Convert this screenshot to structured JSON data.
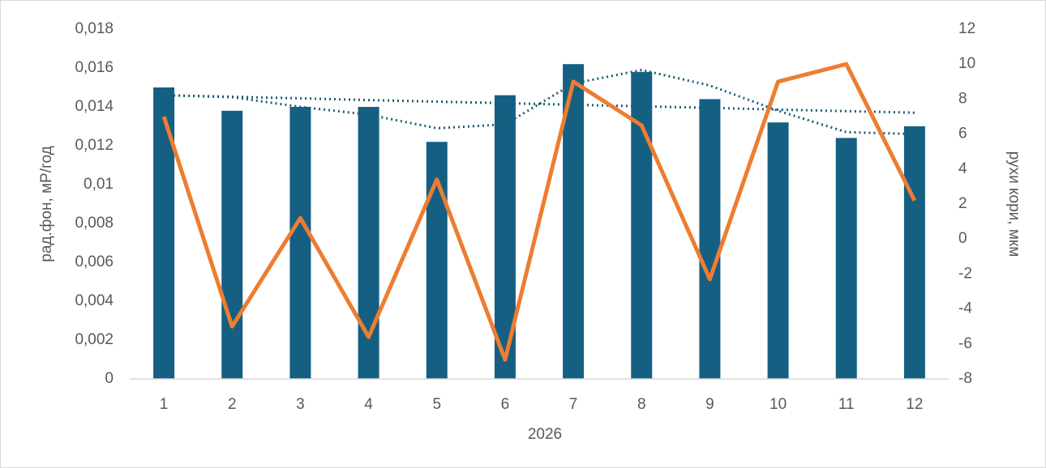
{
  "chart_data": {
    "type": "bar",
    "xlabel": "2026",
    "ylabel": "рад.фон, мР/год",
    "y2label": "рухи кори, мкм",
    "categories": [
      "1",
      "2",
      "3",
      "4",
      "5",
      "6",
      "7",
      "8",
      "9",
      "10",
      "11",
      "12"
    ],
    "series": [
      {
        "type": "bar",
        "color": "#155f83",
        "values": [
          0.015,
          0.0138,
          0.014,
          0.014,
          0.0122,
          0.0146,
          0.0162,
          0.0158,
          0.0144,
          0.0132,
          0.0124,
          0.013
        ]
      },
      {
        "type": "line",
        "style": "dotted",
        "color": "#1b5e73",
        "values": [
          0.0146,
          0.01452,
          0.01444,
          0.01435,
          0.01427,
          0.01419,
          0.01411,
          0.01403,
          0.01395,
          0.01386,
          0.01378,
          0.0137
        ]
      },
      {
        "type": "line",
        "style": "dotted",
        "color": "#1b5e73",
        "values": [
          0.0146,
          0.0145,
          0.014,
          0.0136,
          0.0129,
          0.0131,
          0.0152,
          0.0159,
          0.0151,
          0.0138,
          0.0127,
          0.0126
        ]
      },
      {
        "type": "line",
        "style": "solid",
        "color": "#ed7d31",
        "axis": "y2",
        "values": [
          7,
          -5,
          1.2,
          -5.6,
          3.4,
          -6.9,
          9,
          6.5,
          -2.3,
          9,
          10,
          2.2
        ]
      }
    ],
    "ylim": [
      0,
      0.018
    ],
    "yticks": [
      0,
      {
        "value": 0.002,
        "label": "0,002"
      },
      {
        "value": 0.004,
        "label": "0,004"
      },
      {
        "value": 0.006,
        "label": "0,006"
      },
      {
        "value": 0.008,
        "label": "0,008"
      },
      {
        "value": 0.01,
        "label": "0,01"
      },
      {
        "value": 0.012,
        "label": "0,012"
      },
      {
        "value": 0.014,
        "label": "0,014"
      },
      {
        "value": 0.016,
        "label": "0,016"
      },
      {
        "value": 0.018,
        "label": "0,018"
      }
    ],
    "y2lim": [
      -8,
      12
    ],
    "y2ticks": [
      -8,
      -6,
      -4,
      -2,
      0,
      2,
      4,
      6,
      8,
      10,
      12
    ],
    "grid": false
  }
}
